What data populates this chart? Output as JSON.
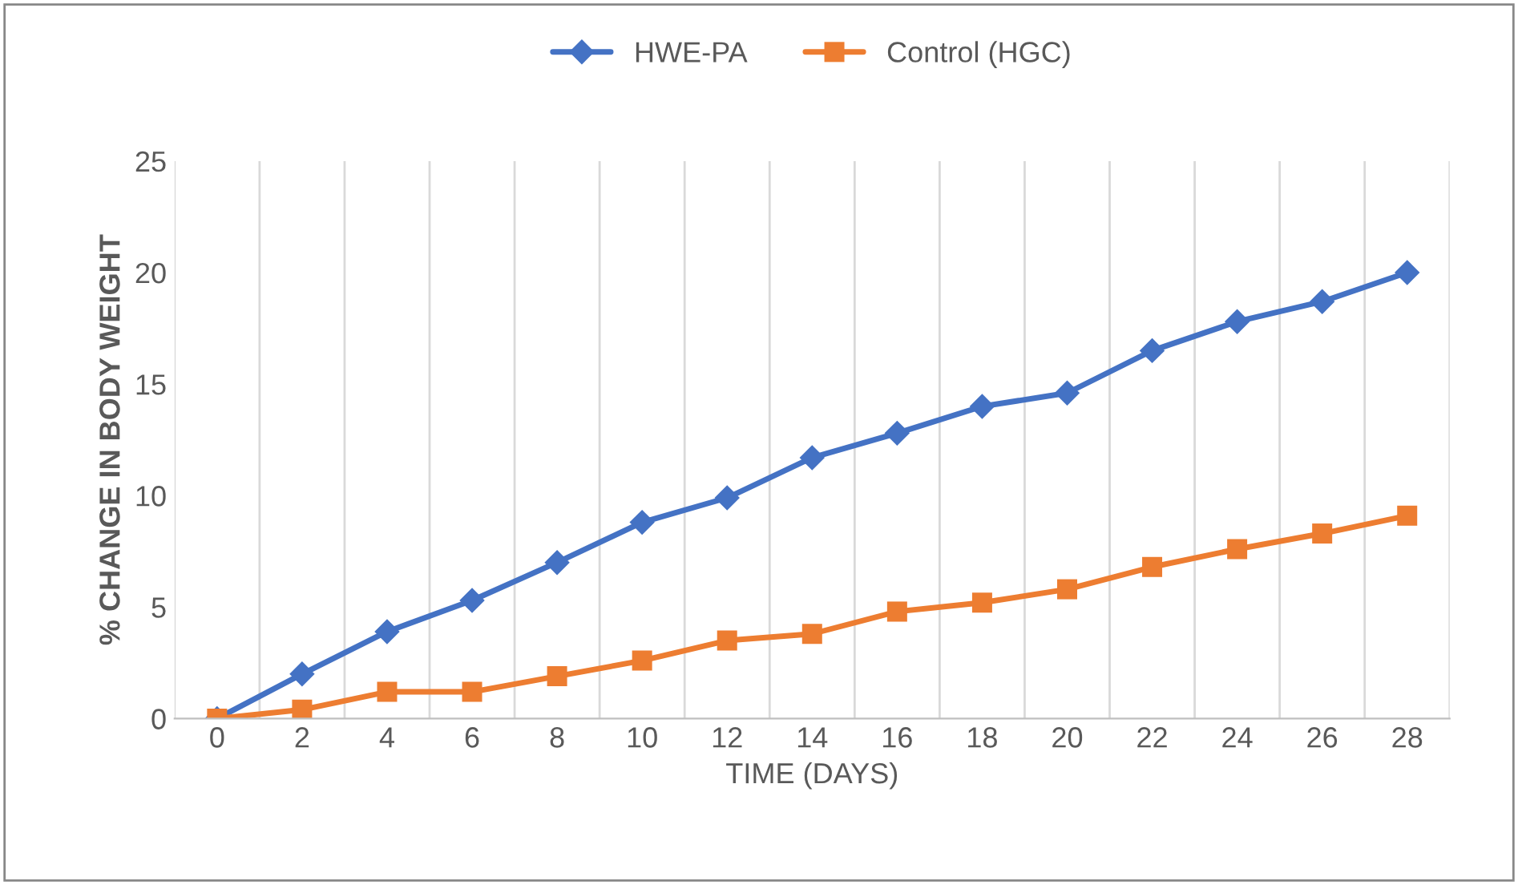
{
  "chart_data": {
    "type": "line",
    "xlabel": "TIME (DAYS)",
    "ylabel": "% CHANGE IN BODY WEIGHT",
    "categories": [
      "0",
      "2",
      "4",
      "6",
      "8",
      "10",
      "12",
      "14",
      "16",
      "18",
      "20",
      "22",
      "24",
      "26",
      "28"
    ],
    "series": [
      {
        "name": "HWE-PA",
        "color": "#4472c4",
        "marker": "diamond",
        "values": [
          0,
          2.0,
          3.9,
          5.3,
          7.0,
          8.8,
          9.9,
          11.7,
          12.8,
          14.0,
          14.6,
          16.5,
          17.8,
          18.7,
          20.0
        ]
      },
      {
        "name": "Control (HGC)",
        "color": "#ed7d31",
        "marker": "square",
        "values": [
          0,
          0.4,
          1.2,
          1.2,
          1.9,
          2.6,
          3.5,
          3.8,
          4.8,
          5.2,
          5.8,
          6.8,
          7.6,
          8.3,
          9.1
        ]
      }
    ],
    "ylim": [
      0,
      25
    ],
    "yticks": [
      0,
      5,
      10,
      15,
      20,
      25
    ],
    "grid": "x",
    "legend": "top",
    "line_style": "solid"
  }
}
